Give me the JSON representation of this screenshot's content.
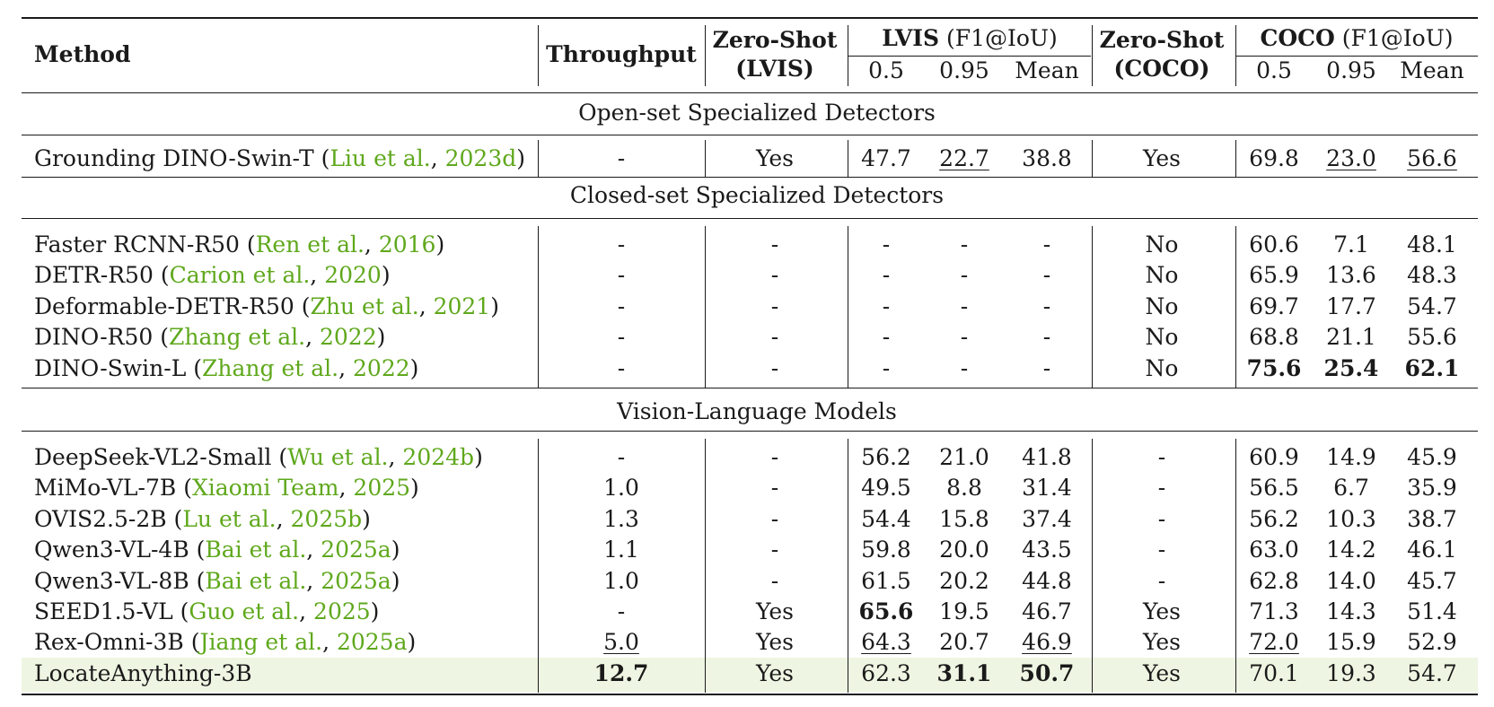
{
  "header": {
    "method": "Method",
    "throughput": "Throughput",
    "zs_lvis_1": "Zero-Shot",
    "zs_lvis_2": "(LVIS)",
    "lvis_name": "LVIS",
    "lvis_metric": "(F1@IoU)",
    "zs_coco_1": "Zero-Shot",
    "zs_coco_2": "(COCO)",
    "coco_name": "COCO",
    "coco_metric": "(F1@IoU)",
    "sub_05": "0.5",
    "sub_095": "0.95",
    "sub_mean": "Mean"
  },
  "sections": [
    {
      "title": "Open-set Specialized Detectors",
      "rows": [
        {
          "method": "Grounding DINO-Swin-T",
          "cite_a": "Liu et al.",
          "cite_b": "2023d",
          "tp": "-",
          "zsl": "Yes",
          "l05": "47.7",
          "l095": "22.7",
          "lm": "38.8",
          "zsc": "Yes",
          "c05": "69.8",
          "c095": "23.0",
          "cm": "56.6"
        }
      ]
    },
    {
      "title": "Closed-set Specialized Detectors",
      "rows": [
        {
          "method": "Faster RCNN-R50",
          "cite_a": "Ren et al.",
          "cite_b": "2016",
          "tp": "-",
          "zsl": "-",
          "l05": "-",
          "l095": "-",
          "lm": "-",
          "zsc": "No",
          "c05": "60.6",
          "c095": "7.1",
          "cm": "48.1"
        },
        {
          "method": "DETR-R50",
          "cite_a": "Carion et al.",
          "cite_b": "2020",
          "tp": "-",
          "zsl": "-",
          "l05": "-",
          "l095": "-",
          "lm": "-",
          "zsc": "No",
          "c05": "65.9",
          "c095": "13.6",
          "cm": "48.3"
        },
        {
          "method": "Deformable-DETR-R50",
          "cite_a": "Zhu et al.",
          "cite_b": "2021",
          "tp": "-",
          "zsl": "-",
          "l05": "-",
          "l095": "-",
          "lm": "-",
          "zsc": "No",
          "c05": "69.7",
          "c095": "17.7",
          "cm": "54.7"
        },
        {
          "method": "DINO-R50",
          "cite_a": "Zhang et al.",
          "cite_b": "2022",
          "tp": "-",
          "zsl": "-",
          "l05": "-",
          "l095": "-",
          "lm": "-",
          "zsc": "No",
          "c05": "68.8",
          "c095": "21.1",
          "cm": "55.6"
        },
        {
          "method": "DINO-Swin-L",
          "cite_a": "Zhang et al.",
          "cite_b": "2022",
          "tp": "-",
          "zsl": "-",
          "l05": "-",
          "l095": "-",
          "lm": "-",
          "zsc": "No",
          "c05": "75.6",
          "c095": "25.4",
          "cm": "62.1"
        }
      ]
    },
    {
      "title": "Vision-Language Models",
      "rows": [
        {
          "method": "DeepSeek-VL2-Small",
          "cite_a": "Wu et al.",
          "cite_b": "2024b",
          "tp": "-",
          "zsl": "-",
          "l05": "56.2",
          "l095": "21.0",
          "lm": "41.8",
          "zsc": "-",
          "c05": "60.9",
          "c095": "14.9",
          "cm": "45.9"
        },
        {
          "method": "MiMo-VL-7B",
          "cite_a": "Xiaomi Team",
          "cite_b": "2025",
          "tp": "1.0",
          "zsl": "-",
          "l05": "49.5",
          "l095": "8.8",
          "lm": "31.4",
          "zsc": "-",
          "c05": "56.5",
          "c095": "6.7",
          "cm": "35.9"
        },
        {
          "method": "OVIS2.5-2B",
          "cite_a": "Lu et al.",
          "cite_b": "2025b",
          "tp": "1.3",
          "zsl": "-",
          "l05": "54.4",
          "l095": "15.8",
          "lm": "37.4",
          "zsc": "-",
          "c05": "56.2",
          "c095": "10.3",
          "cm": "38.7"
        },
        {
          "method": "Qwen3-VL-4B",
          "cite_a": "Bai et al.",
          "cite_b": "2025a",
          "tp": "1.1",
          "zsl": "-",
          "l05": "59.8",
          "l095": "20.0",
          "lm": "43.5",
          "zsc": "-",
          "c05": "63.0",
          "c095": "14.2",
          "cm": "46.1"
        },
        {
          "method": "Qwen3-VL-8B",
          "cite_a": "Bai et al.",
          "cite_b": "2025a",
          "tp": "1.0",
          "zsl": "-",
          "l05": "61.5",
          "l095": "20.2",
          "lm": "44.8",
          "zsc": "-",
          "c05": "62.8",
          "c095": "14.0",
          "cm": "45.7"
        },
        {
          "method": "SEED1.5-VL",
          "cite_a": "Guo et al.",
          "cite_b": "2025",
          "tp": "-",
          "zsl": "Yes",
          "l05": "65.6",
          "l095": "19.5",
          "lm": "46.7",
          "zsc": "Yes",
          "c05": "71.3",
          "c095": "14.3",
          "cm": "51.4"
        },
        {
          "method": "Rex-Omni-3B",
          "cite_a": "Jiang et al.",
          "cite_b": "2025a",
          "tp": "5.0",
          "zsl": "Yes",
          "l05": "64.3",
          "l095": "20.7",
          "lm": "46.9",
          "zsc": "Yes",
          "c05": "72.0",
          "c095": "15.9",
          "cm": "52.9"
        },
        {
          "method": "LocateAnything-3B",
          "cite_a": "",
          "cite_b": "",
          "tp": "12.7",
          "zsl": "Yes",
          "l05": "62.3",
          "l095": "31.1",
          "lm": "50.7",
          "zsc": "Yes",
          "c05": "70.1",
          "c095": "19.3",
          "cm": "54.7"
        }
      ]
    }
  ],
  "colors": {
    "citation": "#5fa81c",
    "highlight_row": "#eef5e2"
  }
}
